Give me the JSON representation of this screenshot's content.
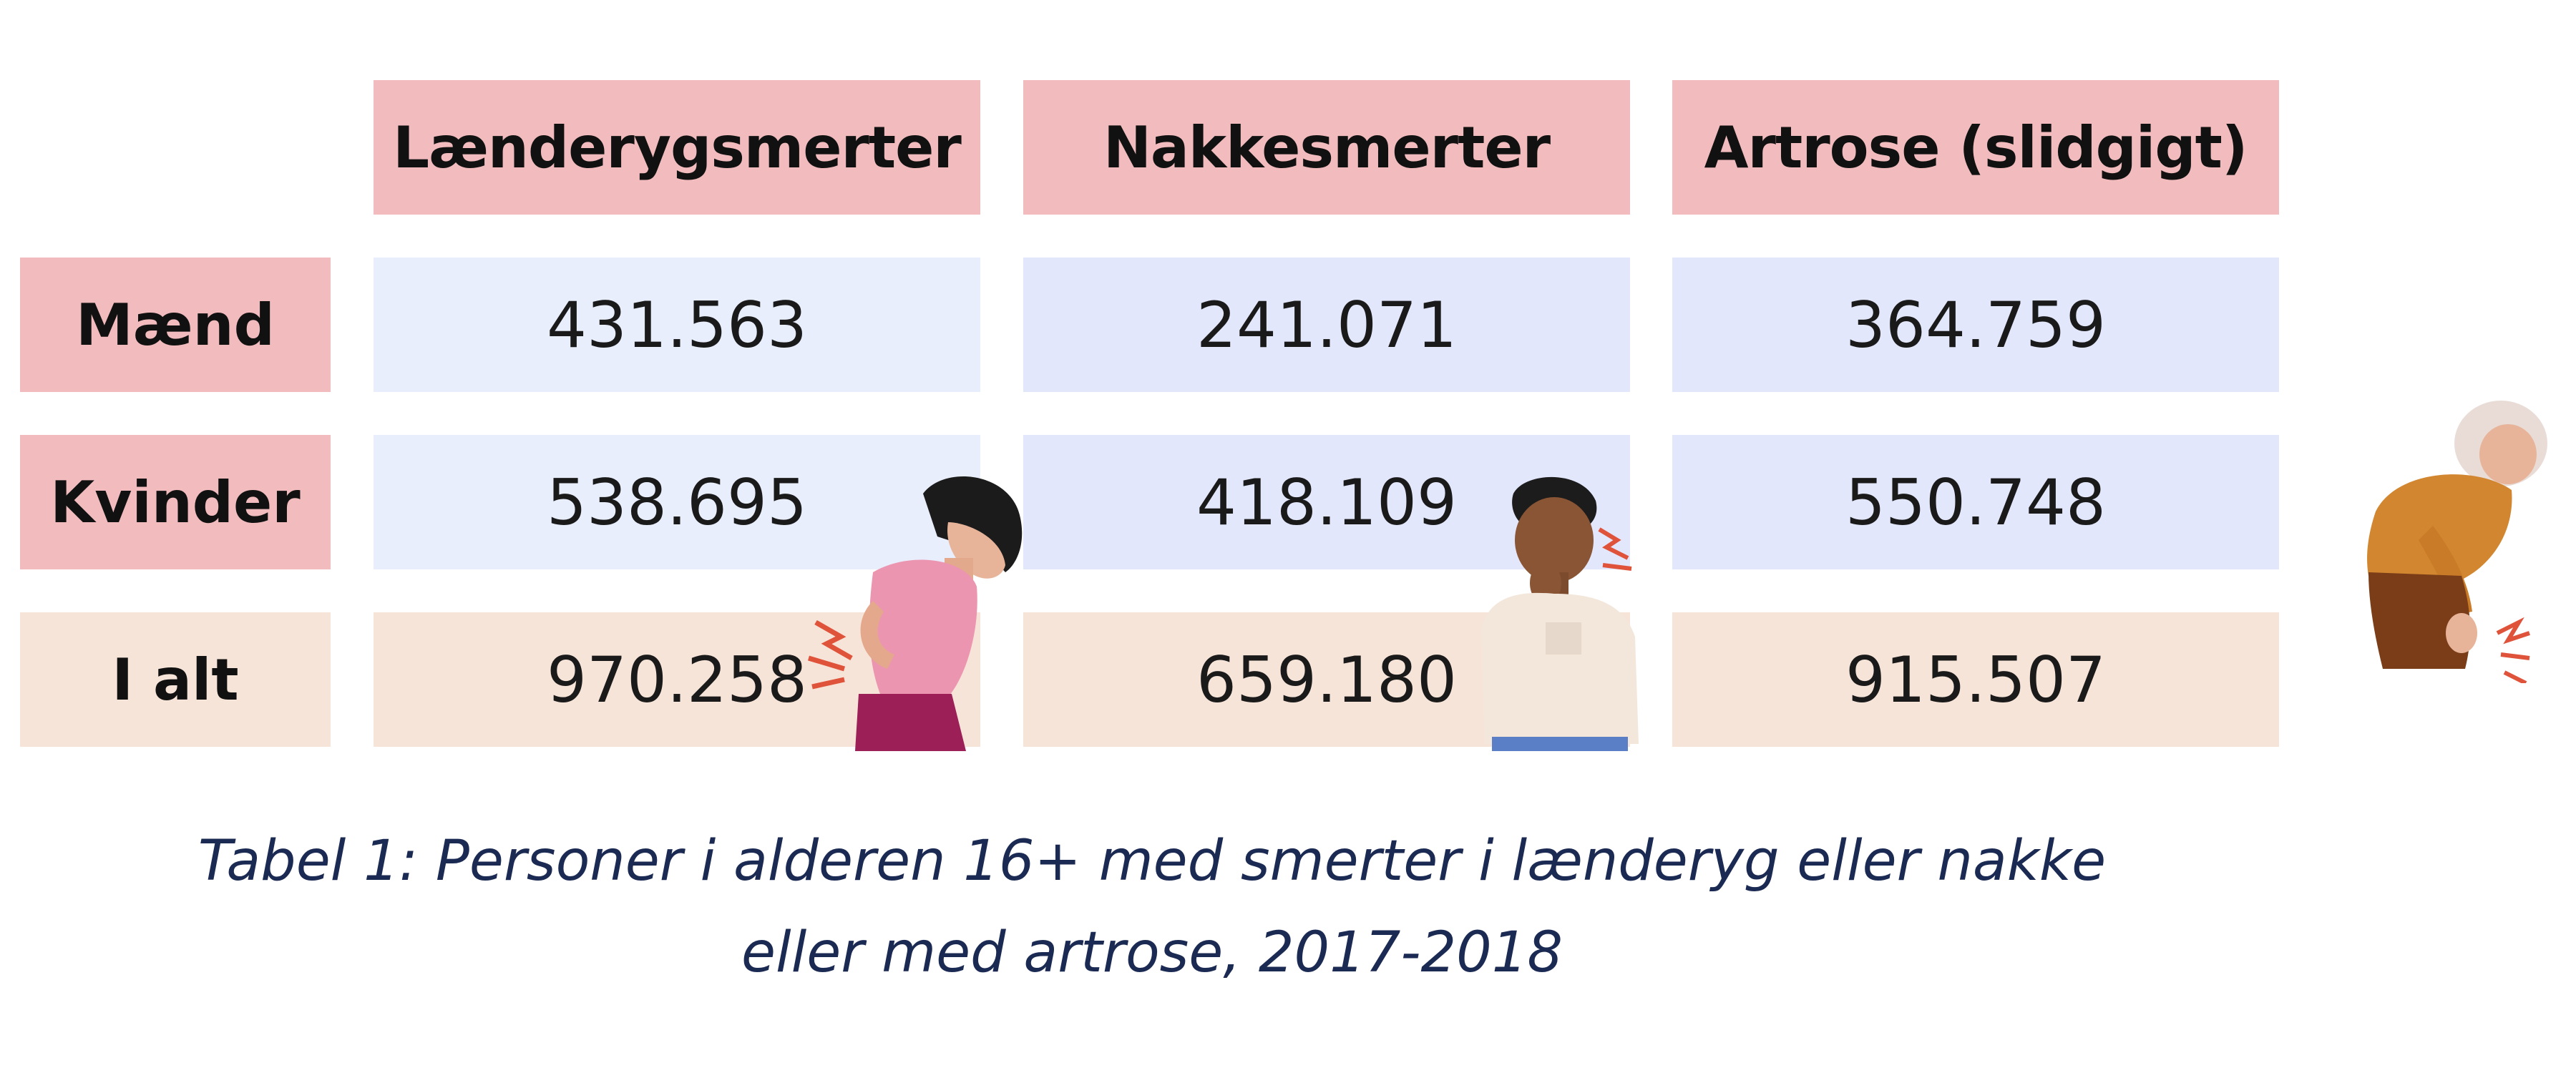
{
  "chart_data": {
    "type": "table",
    "columns": [
      "Lænderygsmerter",
      "Nakkesmerter",
      "Artrose (slidgigt)"
    ],
    "rows": [
      {
        "label": "Mænd",
        "values": [
          "431.563",
          "241.071",
          "364.759"
        ]
      },
      {
        "label": "Kvinder",
        "values": [
          "538.695",
          "418.109",
          "550.748"
        ]
      },
      {
        "label": "I alt",
        "values": [
          "970.258",
          "659.180",
          "915.507"
        ]
      }
    ],
    "caption_line1": "Tabel 1: Personer i alderen 16+ med smerter i lænderyg eller nakke",
    "caption_line2": "eller med artrose, 2017-2018"
  },
  "colors": {
    "header": "#f2bcbe",
    "total_row": "#f7e4d8",
    "value_cell": "#e2e7fb",
    "caption": "#1b2a52"
  }
}
